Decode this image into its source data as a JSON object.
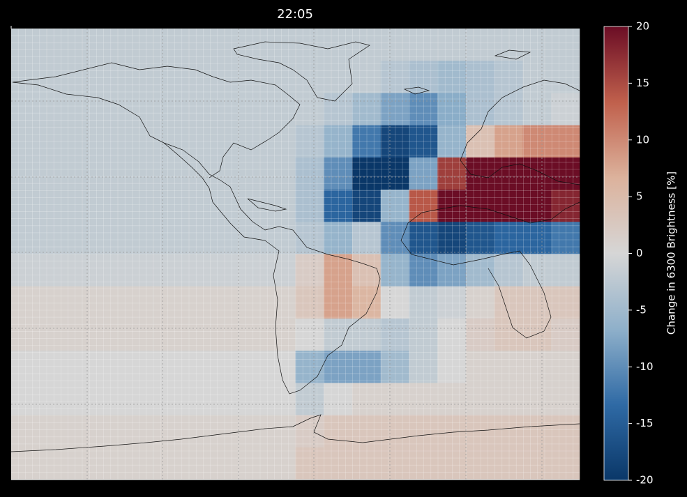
{
  "chart_data": {
    "type": "heatmap",
    "title": "22:05",
    "colorbar_label": "Change in 6300 Brightness [%]",
    "zlim": [
      -20,
      20
    ],
    "zticks": [
      -20,
      -15,
      -10,
      -5,
      0,
      5,
      10,
      15,
      20
    ],
    "colors": [
      "#0a3768",
      "#2f6aa5",
      "#8fb0ca",
      "#d6d6d6",
      "#dcb29c",
      "#c0604c",
      "#6b0d25"
    ],
    "z": [
      [
        -2,
        -2,
        -2,
        -2,
        -2,
        -2,
        -2,
        -2,
        -2,
        -2,
        -2,
        -2,
        -2,
        -2,
        -2,
        -2,
        -2,
        -2,
        -2,
        -2
      ],
      [
        -2,
        -2,
        -2,
        -2,
        -2,
        -2,
        -2,
        -2,
        -2,
        -2,
        -2,
        -2,
        -2,
        -3,
        -4,
        -5,
        -4,
        -3,
        -2,
        -2
      ],
      [
        -2,
        -2,
        -2,
        -2,
        -2,
        -2,
        -2,
        -2,
        -2,
        -2,
        -2,
        -3,
        -5,
        -8,
        -10,
        -7,
        -4,
        -3,
        -2,
        -1
      ],
      [
        -2,
        -2,
        -2,
        -2,
        -2,
        -2,
        -2,
        -2,
        -2,
        -2,
        -3,
        -6,
        -12,
        -18,
        -16,
        -6,
        4,
        8,
        10,
        10
      ],
      [
        -2,
        -2,
        -2,
        -2,
        -2,
        -2,
        -2,
        -2,
        -2,
        -2,
        -4,
        -10,
        -20,
        -20,
        -8,
        16,
        20,
        20,
        20,
        20
      ],
      [
        -2,
        -2,
        -2,
        -2,
        -2,
        -2,
        -2,
        -2,
        -2,
        -2,
        -4,
        -14,
        -18,
        -6,
        14,
        20,
        20,
        20,
        20,
        18
      ],
      [
        -2,
        -2,
        -2,
        -2,
        -2,
        -2,
        -2,
        -2,
        -2,
        -2,
        -3,
        -6,
        -3,
        -10,
        -16,
        -18,
        -16,
        -14,
        -14,
        -12
      ],
      [
        -1,
        -1,
        -1,
        -1,
        -1,
        -1,
        -1,
        -1,
        -1,
        -1,
        2,
        8,
        4,
        -6,
        -10,
        -8,
        -5,
        -3,
        -2,
        -2
      ],
      [
        1,
        1,
        1,
        1,
        1,
        1,
        1,
        1,
        1,
        1,
        3,
        8,
        6,
        0,
        -2,
        -1,
        1,
        3,
        3,
        3
      ],
      [
        1,
        1,
        1,
        1,
        1,
        1,
        1,
        1,
        1,
        1,
        0,
        -2,
        -2,
        -3,
        -2,
        0,
        2,
        3,
        3,
        2
      ],
      [
        0,
        0,
        0,
        0,
        0,
        0,
        0,
        0,
        0,
        0,
        -6,
        -8,
        -8,
        -5,
        -2,
        0,
        1,
        1,
        1,
        1
      ],
      [
        0,
        0,
        0,
        0,
        0,
        0,
        0,
        0,
        0,
        0,
        -2,
        0,
        1,
        1,
        1,
        1,
        1,
        1,
        1,
        1
      ],
      [
        1,
        1,
        1,
        1,
        1,
        1,
        1,
        1,
        1,
        1,
        2,
        3,
        3,
        3,
        3,
        3,
        3,
        3,
        3,
        3
      ],
      [
        1,
        1,
        1,
        1,
        1,
        1,
        1,
        1,
        1,
        1,
        3,
        3,
        3,
        3,
        3,
        3,
        3,
        3,
        3,
        3
      ]
    ]
  }
}
